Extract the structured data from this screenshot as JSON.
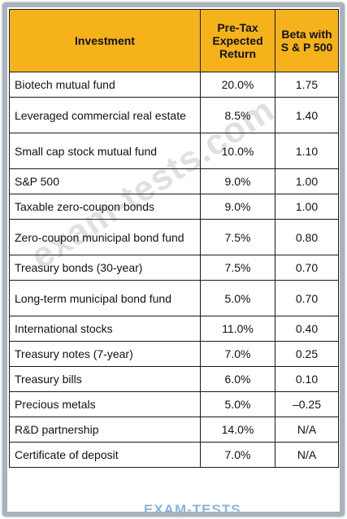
{
  "table": {
    "headers": [
      [
        "Investment"
      ],
      [
        "Pre-Tax",
        "Expected",
        "Return"
      ],
      [
        "Beta with",
        "S & P 500"
      ]
    ],
    "rows": [
      {
        "investment": "Biotech mutual fund",
        "return": "20.0%",
        "beta": "1.75"
      },
      {
        "investment": "Leveraged commercial real estate",
        "return": "8.5%",
        "beta": "1.40"
      },
      {
        "investment": "Small cap stock mutual fund",
        "return": "10.0%",
        "beta": "1.10"
      },
      {
        "investment": "S&P 500",
        "return": "9.0%",
        "beta": "1.00"
      },
      {
        "investment": "Taxable zero-coupon bonds",
        "return": "9.0%",
        "beta": "1.00"
      },
      {
        "investment": "Zero-coupon municipal bond fund",
        "return": "7.5%",
        "beta": "0.80"
      },
      {
        "investment": "Treasury bonds (30-year)",
        "return": "7.5%",
        "beta": "0.70"
      },
      {
        "investment": "Long-term municipal bond fund",
        "return": "5.0%",
        "beta": "0.70"
      },
      {
        "investment": "International stocks",
        "return": "11.0%",
        "beta": "0.40"
      },
      {
        "investment": "Treasury notes (7-year)",
        "return": "7.0%",
        "beta": "0.25"
      },
      {
        "investment": "Treasury bills",
        "return": "6.0%",
        "beta": "0.10"
      },
      {
        "investment": "Precious metals",
        "return": "5.0%",
        "beta": "–0.25"
      },
      {
        "investment": "R&D partnership",
        "return": "14.0%",
        "beta": "N/A"
      },
      {
        "investment": "Certificate of deposit",
        "return": "7.0%",
        "beta": "N/A"
      }
    ]
  },
  "watermark": "exam-tests.com",
  "brand": "EXAM-TESTS",
  "colors": {
    "header_bg": "#f5b21a",
    "frame": "#a8b3bc",
    "border": "#1a1a1a"
  }
}
